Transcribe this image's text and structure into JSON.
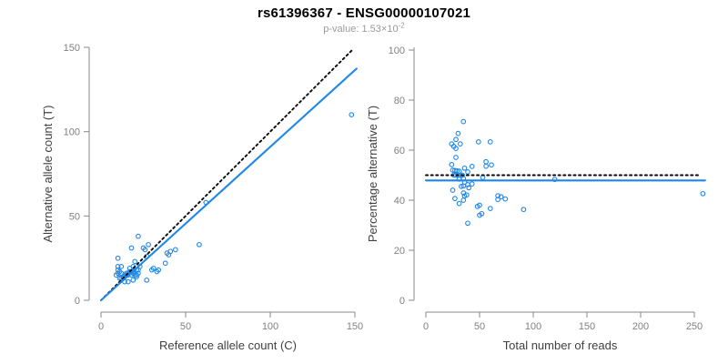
{
  "header": {
    "title": "rs61396367 - ENSG00000107021",
    "pvalue_label": "p-value:",
    "pvalue_mantissa": "1.53",
    "pvalue_times": "×10",
    "pvalue_exponent": "-2"
  },
  "style": {
    "point_color": "#1f87e8",
    "fit_line_color": "#1f87e8",
    "dotted_line_color": "#0a0a0a",
    "axis_color": "#888888",
    "tick_label_color": "#808080",
    "axis_label_color": "#404040"
  },
  "chart_data": [
    {
      "type": "scatter",
      "name": "allele-counts-scatter",
      "xlabel": "Reference allele count (C)",
      "ylabel": "Alternative allele count (T)",
      "xlim": [
        0,
        152
      ],
      "ylim": [
        0,
        152
      ],
      "xticks": [
        0,
        50,
        100,
        150
      ],
      "yticks": [
        0,
        50,
        100,
        150
      ],
      "grid": false,
      "lines": [
        {
          "name": "identity-line",
          "style": "dotted",
          "from": [
            0,
            0
          ],
          "to": [
            149,
            149
          ]
        },
        {
          "name": "fit-line",
          "style": "solid",
          "slope": 0.91,
          "from": [
            0,
            0
          ],
          "to": [
            151,
            137.4
          ]
        }
      ],
      "points": [
        [
          10,
          25
        ],
        [
          10,
          20
        ],
        [
          10,
          18
        ],
        [
          12,
          20
        ],
        [
          18,
          31
        ],
        [
          22,
          38
        ],
        [
          10,
          16
        ],
        [
          12,
          16
        ],
        [
          11,
          13
        ],
        [
          9,
          15
        ],
        [
          11,
          17
        ],
        [
          25,
          31
        ],
        [
          26,
          30
        ],
        [
          28,
          33
        ],
        [
          20,
          23
        ],
        [
          17,
          19
        ],
        [
          19,
          20
        ],
        [
          12,
          13
        ],
        [
          13,
          14
        ],
        [
          14,
          14
        ],
        [
          13,
          13
        ],
        [
          15,
          15
        ],
        [
          14,
          15
        ],
        [
          15,
          16
        ],
        [
          16,
          16
        ],
        [
          17,
          17
        ],
        [
          16,
          15
        ],
        [
          27,
          26
        ],
        [
          18,
          17
        ],
        [
          62,
          58
        ],
        [
          19,
          17
        ],
        [
          18,
          15
        ],
        [
          21,
          18
        ],
        [
          22,
          18
        ],
        [
          14,
          11
        ],
        [
          20,
          15
        ],
        [
          16,
          11
        ],
        [
          21,
          14
        ],
        [
          19,
          12
        ],
        [
          39,
          28
        ],
        [
          41,
          29
        ],
        [
          40,
          27
        ],
        [
          44,
          30
        ],
        [
          31,
          19
        ],
        [
          30,
          18
        ],
        [
          38,
          22
        ],
        [
          34,
          18
        ],
        [
          33,
          17
        ],
        [
          27,
          12
        ],
        [
          58,
          33
        ],
        [
          148,
          110
        ],
        [
          23,
          20
        ],
        [
          19,
          16
        ],
        [
          21,
          15
        ],
        [
          22,
          16
        ]
      ]
    },
    {
      "type": "scatter",
      "name": "percentage-vs-coverage-scatter",
      "xlabel": "Total number of reads",
      "ylabel": "Percentage alternative (T)",
      "xlim": [
        0,
        262
      ],
      "ylim": [
        0,
        100
      ],
      "xticks": [
        0,
        50,
        100,
        150,
        200,
        250
      ],
      "yticks": [
        0,
        20,
        40,
        60,
        80,
        100
      ],
      "grid": false,
      "lines": [
        {
          "name": "expected-50pct-line",
          "style": "dotted",
          "from": [
            0,
            50
          ],
          "to": [
            254,
            50
          ]
        },
        {
          "name": "fit-line",
          "style": "solid",
          "value": 47.9,
          "from": [
            0,
            47.9
          ],
          "to": [
            260,
            47.9
          ]
        }
      ],
      "points": [
        [
          35,
          71.4
        ],
        [
          30,
          66.7
        ],
        [
          28,
          64.3
        ],
        [
          32,
          62.5
        ],
        [
          49,
          63.3
        ],
        [
          60,
          63.3
        ],
        [
          26,
          61.5
        ],
        [
          28,
          57.1
        ],
        [
          24,
          54.2
        ],
        [
          24,
          62.5
        ],
        [
          28,
          60.7
        ],
        [
          56,
          55.4
        ],
        [
          56,
          53.6
        ],
        [
          61,
          54.1
        ],
        [
          43,
          53.5
        ],
        [
          36,
          52.8
        ],
        [
          39,
          51.3
        ],
        [
          25,
          52.0
        ],
        [
          27,
          51.9
        ],
        [
          28,
          50.0
        ],
        [
          26,
          50.0
        ],
        [
          30,
          50.0
        ],
        [
          29,
          51.7
        ],
        [
          31,
          51.6
        ],
        [
          32,
          50.0
        ],
        [
          34,
          50.0
        ],
        [
          31,
          48.4
        ],
        [
          53,
          49.1
        ],
        [
          35,
          48.6
        ],
        [
          120,
          48.3
        ],
        [
          36,
          47.2
        ],
        [
          33,
          45.5
        ],
        [
          39,
          46.2
        ],
        [
          40,
          45.0
        ],
        [
          25,
          44.0
        ],
        [
          35,
          42.9
        ],
        [
          27,
          40.7
        ],
        [
          35,
          40.0
        ],
        [
          31,
          38.7
        ],
        [
          67,
          41.8
        ],
        [
          70,
          41.4
        ],
        [
          67,
          40.3
        ],
        [
          74,
          40.5
        ],
        [
          50,
          38.0
        ],
        [
          48,
          37.5
        ],
        [
          60,
          36.7
        ],
        [
          52,
          34.6
        ],
        [
          50,
          34.0
        ],
        [
          39,
          30.8
        ],
        [
          91,
          36.3
        ],
        [
          258,
          42.6
        ],
        [
          43,
          46.5
        ],
        [
          35,
          45.7
        ],
        [
          36,
          41.7
        ],
        [
          38,
          42.1
        ]
      ]
    }
  ]
}
